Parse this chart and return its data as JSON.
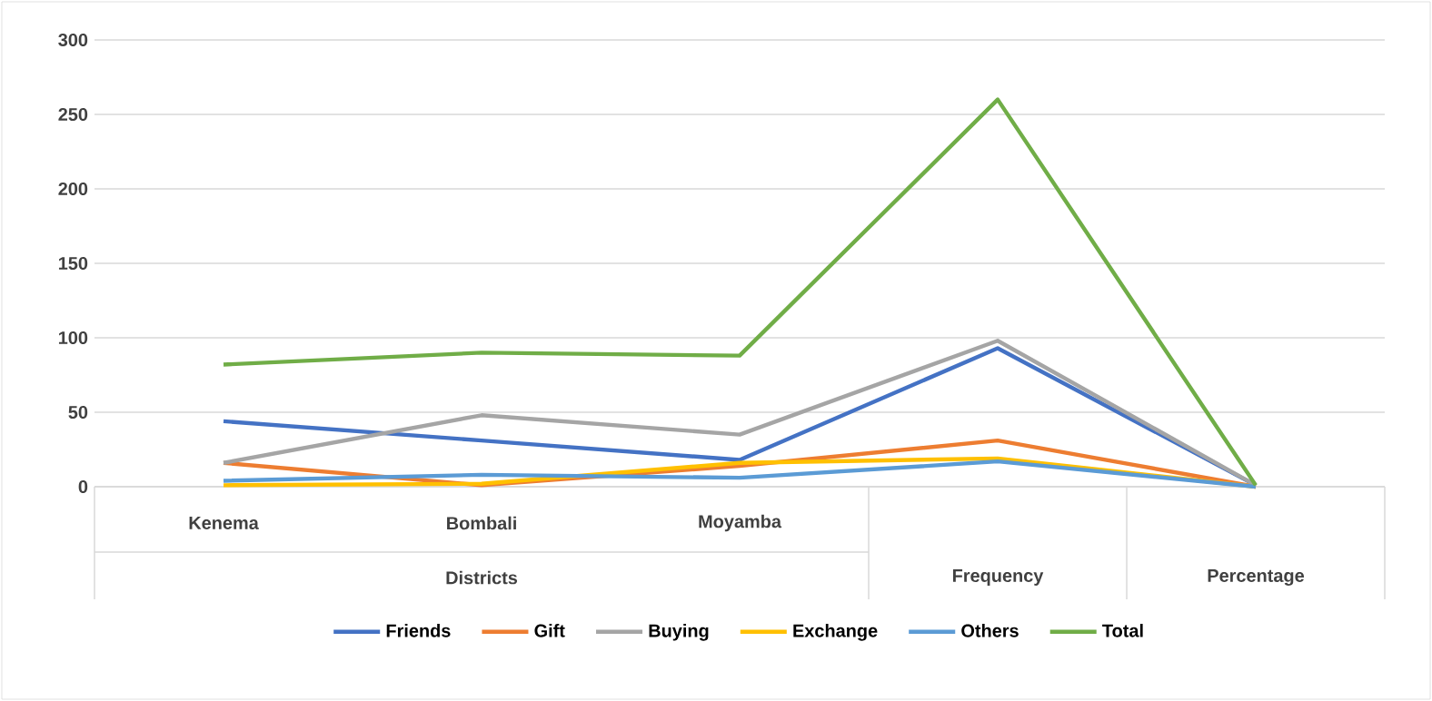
{
  "chart_data": {
    "type": "line",
    "categories": [
      "Kenema",
      "Bombali",
      "Moyamba",
      "Frequency",
      "Percentage"
    ],
    "series": [
      {
        "name": "Friends",
        "color": "#4472c4",
        "values": [
          44,
          31,
          18,
          93,
          1
        ]
      },
      {
        "name": "Gift",
        "color": "#ed7d31",
        "values": [
          16,
          1,
          14,
          31,
          0
        ]
      },
      {
        "name": "Buying",
        "color": "#a5a5a5",
        "values": [
          16,
          48,
          35,
          98,
          1
        ]
      },
      {
        "name": "Exchange",
        "color": "#ffc000",
        "values": [
          1,
          2,
          16,
          19,
          0
        ]
      },
      {
        "name": "Others",
        "color": "#5b9bd5",
        "values": [
          4,
          8,
          6,
          17,
          0
        ]
      },
      {
        "name": "Total",
        "color": "#70ad47",
        "values": [
          82,
          90,
          88,
          260,
          1
        ]
      }
    ],
    "annotations": [
      "Districts"
    ],
    "ylim": [
      0,
      300
    ],
    "yticks": [
      0,
      50,
      100,
      150,
      200,
      250,
      300
    ],
    "grid": "y",
    "legend": "bottom",
    "marker": "none",
    "line_style": "solid"
  }
}
